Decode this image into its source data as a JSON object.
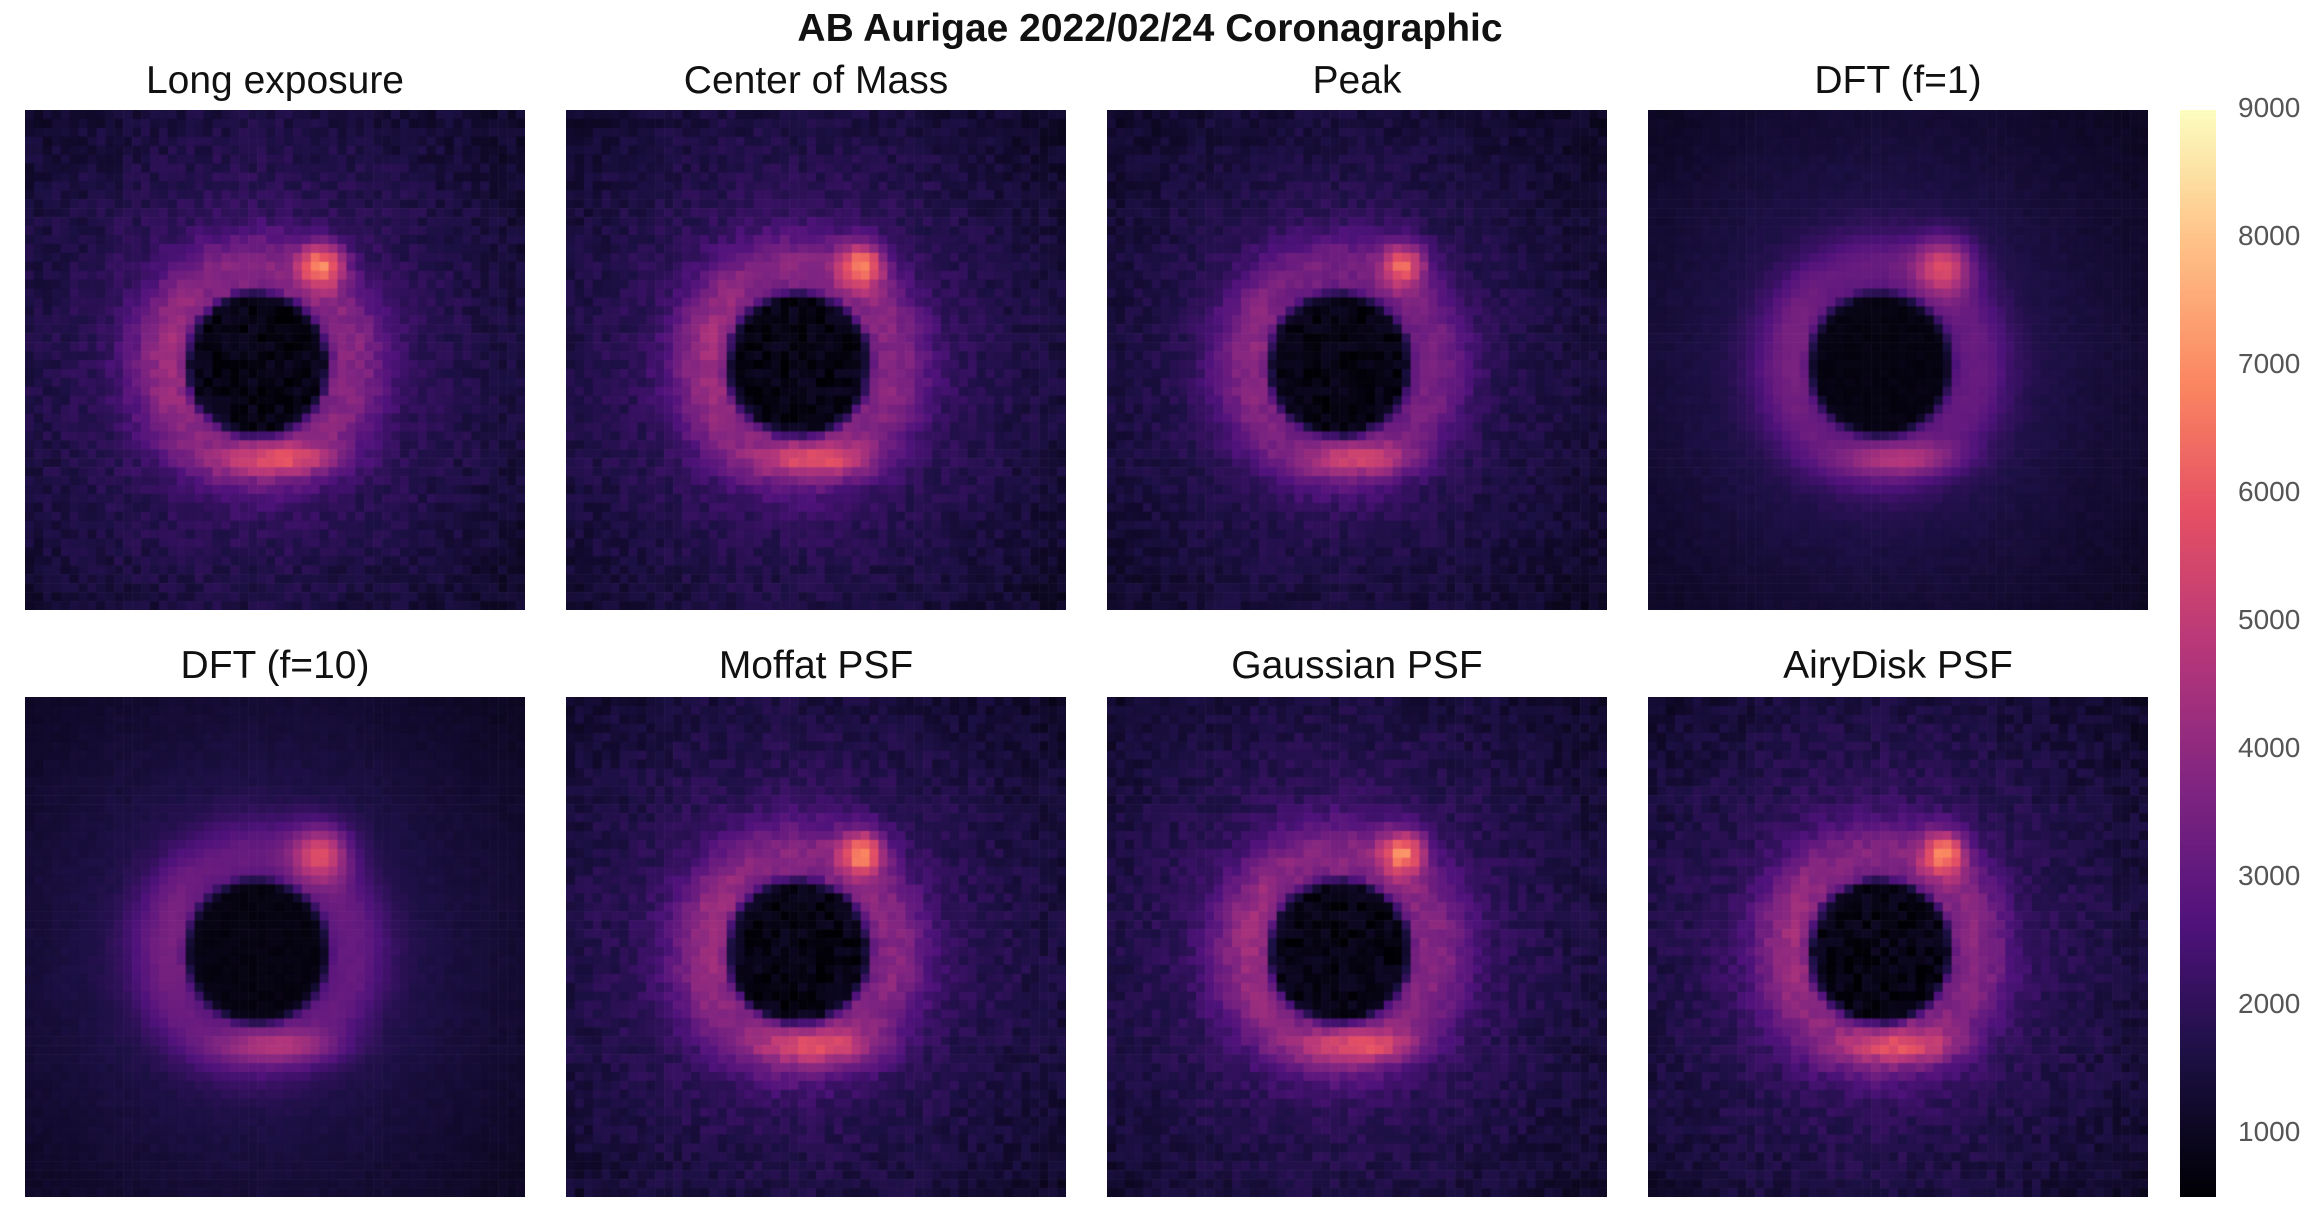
{
  "figure": {
    "title": "AB Aurigae 2022/02/24 Coronagraphic"
  },
  "panels": [
    {
      "title": "Long exposure",
      "smoothness": "low",
      "brightness": 1.0
    },
    {
      "title": "Center of Mass",
      "smoothness": "low",
      "brightness": 1.0
    },
    {
      "title": "Peak",
      "smoothness": "low",
      "brightness": 0.9
    },
    {
      "title": "DFT (f=1)",
      "smoothness": "high",
      "brightness": 0.8
    },
    {
      "title": "DFT (f=10)",
      "smoothness": "high",
      "brightness": 0.8
    },
    {
      "title": "Moffat PSF",
      "smoothness": "low",
      "brightness": 1.0
    },
    {
      "title": "Gaussian PSF",
      "smoothness": "low",
      "brightness": 1.0
    },
    {
      "title": "AiryDisk PSF",
      "smoothness": "low",
      "brightness": 1.0
    }
  ],
  "colorbar": {
    "colormap": "magma",
    "min": 500,
    "max": 9000,
    "ticks": [
      "9000",
      "8000",
      "7000",
      "6000",
      "5000",
      "4000",
      "3000",
      "2000",
      "1000"
    ]
  }
}
